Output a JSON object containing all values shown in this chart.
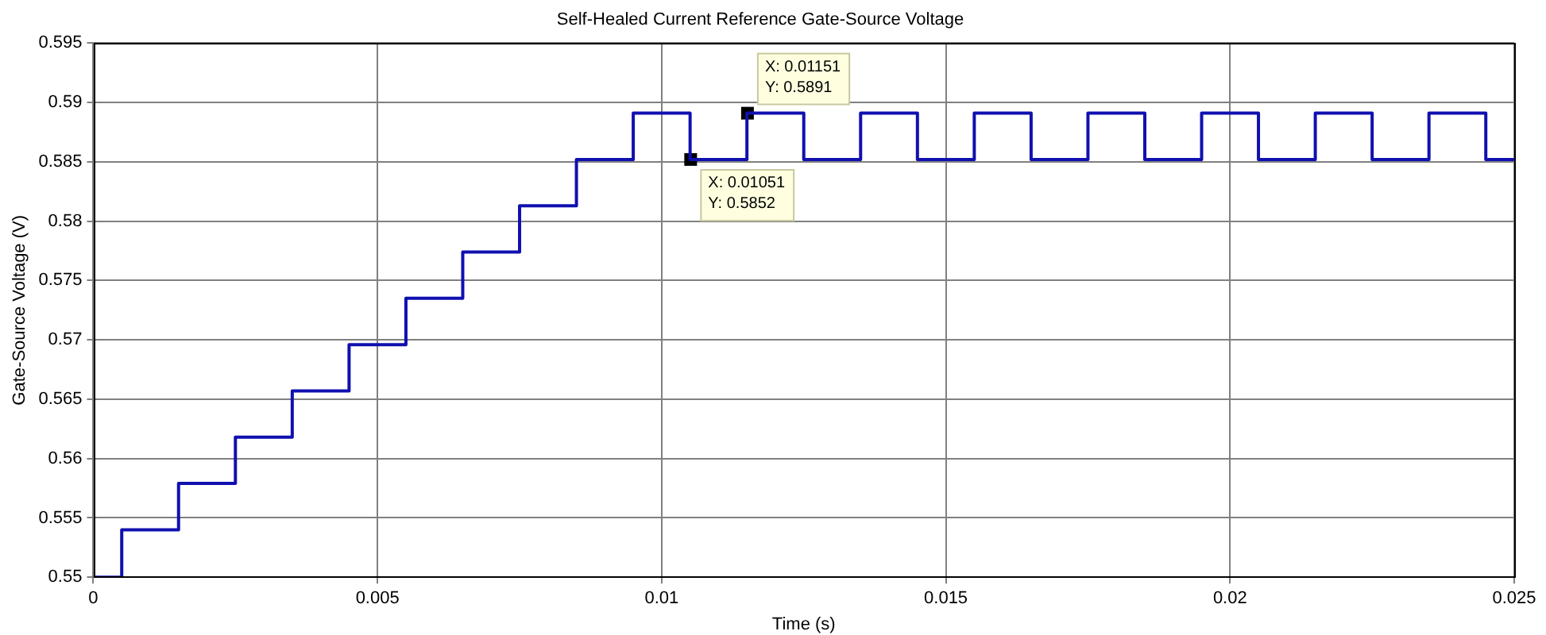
{
  "chart_data": {
    "type": "step",
    "title": "Self-Healed Current Reference Gate-Source Voltage",
    "xlabel": "Time (s)",
    "ylabel": "Gate-Source Voltage (V)",
    "x": [
      0,
      0.0005,
      0.0015,
      0.0025,
      0.0035,
      0.0045,
      0.0055,
      0.0065,
      0.0075,
      0.0085,
      0.0095,
      0.0105,
      0.0115,
      0.0125,
      0.0135,
      0.0145,
      0.0155,
      0.0165,
      0.0175,
      0.0185,
      0.0195,
      0.0205,
      0.0215,
      0.0225,
      0.0235,
      0.0245,
      0.025
    ],
    "series": [
      {
        "color": "#1010b0",
        "values": [
          0.55,
          0.554,
          0.5579,
          0.5618,
          0.5657,
          0.5696,
          0.5735,
          0.5774,
          0.5813,
          0.5852,
          0.5891,
          0.5852,
          0.5891,
          0.5852,
          0.5891,
          0.5852,
          0.5891,
          0.5852,
          0.5891,
          0.5852,
          0.5891,
          0.5852,
          0.5891,
          0.5852,
          0.5891,
          0.5852,
          0.5852
        ]
      }
    ],
    "xlim": [
      0,
      0.025
    ],
    "xticks": [
      0,
      0.005,
      0.01,
      0.015,
      0.02,
      0.025
    ],
    "ylim": [
      0.55,
      0.595
    ],
    "yticks": [
      0.55,
      0.555,
      0.56,
      0.565,
      0.57,
      0.575,
      0.58,
      0.585,
      0.59,
      0.595
    ],
    "grid": true,
    "legend": false,
    "marker": "none",
    "line_style": "solid",
    "annotations": [
      {
        "text": "X: 0.01051\nY: 0.5852",
        "x": 0.01051,
        "y": 0.5852
      },
      {
        "text": "X: 0.01151\nY: 0.5891",
        "x": 0.01151,
        "y": 0.5891
      }
    ]
  }
}
